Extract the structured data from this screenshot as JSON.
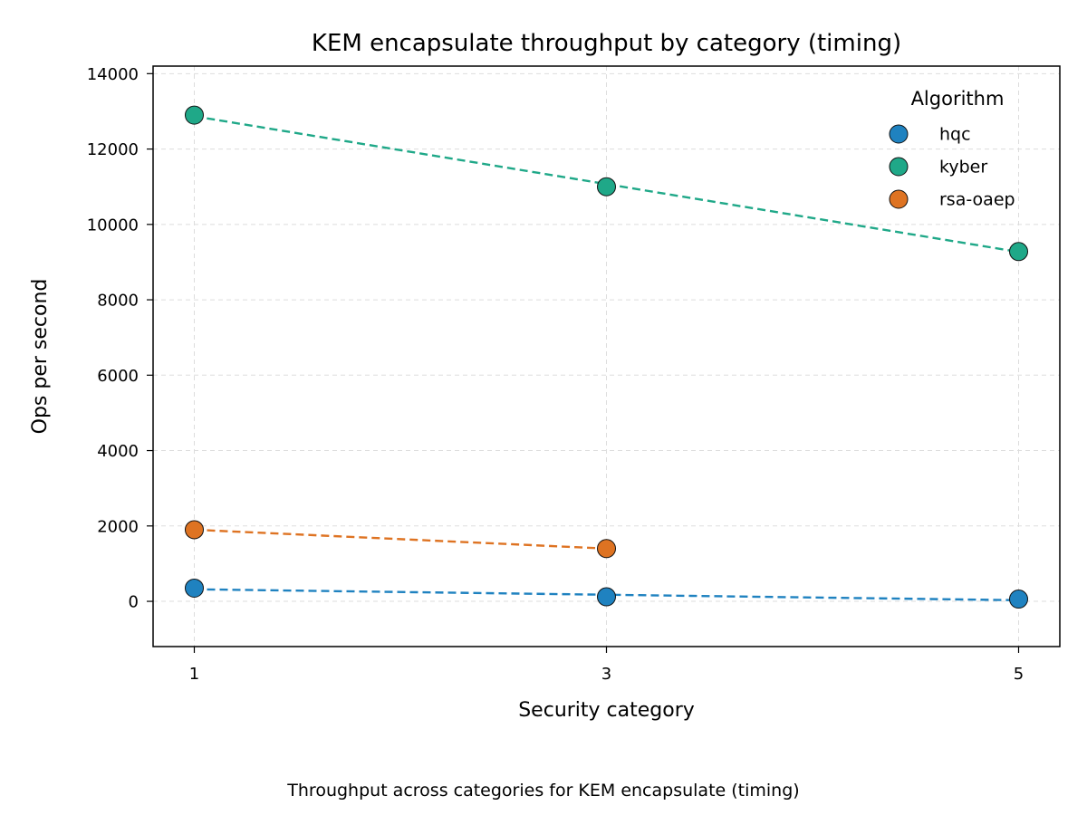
{
  "chart_data": {
    "type": "scatter",
    "title": "KEM encapsulate throughput by category (timing)",
    "xlabel": "Security category",
    "ylabel": "Ops per second",
    "x_ticks": [
      1,
      3,
      5
    ],
    "y_ticks": [
      0,
      2000,
      4000,
      6000,
      8000,
      10000,
      12000,
      14000
    ],
    "xlim": [
      0.8,
      5.2
    ],
    "ylim": [
      -1200,
      14200
    ],
    "grid": true,
    "legend": {
      "title": "Algorithm",
      "position": "top-right"
    },
    "series": [
      {
        "name": "hqc",
        "color": "#1f82c0",
        "x": [
          1,
          3,
          5
        ],
        "y": [
          350,
          120,
          60
        ],
        "trend": [
          320,
          175,
          30
        ]
      },
      {
        "name": "kyber",
        "color": "#1fa888",
        "x": [
          1,
          3,
          5
        ],
        "y": [
          12900,
          11000,
          9280
        ],
        "trend": [
          12870,
          11070,
          9270
        ]
      },
      {
        "name": "rsa-oaep",
        "color": "#de7322",
        "x": [
          1,
          3
        ],
        "y": [
          1900,
          1400
        ],
        "trend": [
          1900,
          1400
        ]
      }
    ]
  },
  "caption": "Throughput across categories for KEM encapsulate (timing)"
}
